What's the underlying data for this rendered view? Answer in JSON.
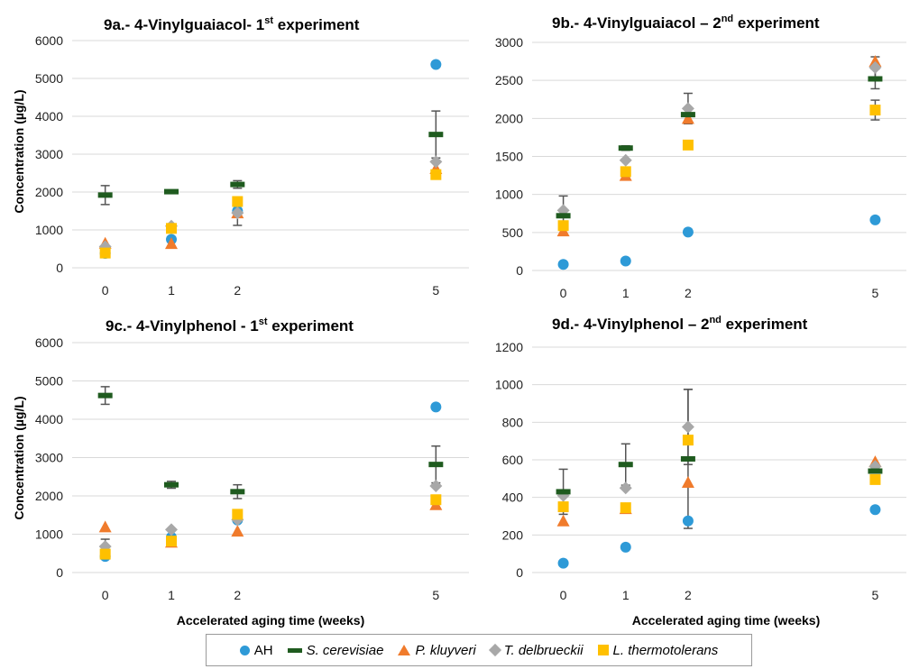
{
  "figure": {
    "y_axis_label": "Concentration (µg/L)",
    "x_axis_label": "Accelerated aging time (weeks)"
  },
  "legend": [
    {
      "key": "AH",
      "label": "AH",
      "italic": false,
      "marker": "circle",
      "color": "#2E9AD7"
    },
    {
      "key": "sc",
      "label": "S. cerevisiae",
      "italic": true,
      "marker": "dash",
      "color": "#1F5B1F"
    },
    {
      "key": "pk",
      "label": "P. kluyveri",
      "italic": true,
      "marker": "triangle",
      "color": "#F07B2C"
    },
    {
      "key": "td",
      "label": "T. delbrueckii",
      "italic": true,
      "marker": "diamond",
      "color": "#A8A8A8"
    },
    {
      "key": "lt",
      "label": "L. thermotolerans",
      "italic": true,
      "marker": "square",
      "color": "#FFC000"
    }
  ],
  "chart_data": [
    {
      "type": "scatter",
      "title_prefix": "9a.- 4-Vinylguaiacol- 1",
      "title_sup": "st",
      "title_suffix": " experiment",
      "x": [
        0,
        1,
        2,
        5
      ],
      "xticks": [
        0,
        1,
        2,
        5
      ],
      "xlim": [
        -0.5,
        5.5
      ],
      "ylim": [
        0,
        6000
      ],
      "yticks": [
        0,
        1000,
        2000,
        3000,
        4000,
        5000,
        6000
      ],
      "grid": true,
      "series": [
        {
          "key": "AH",
          "name": "AH",
          "values": [
            380,
            750,
            1500,
            5370
          ],
          "errors": [
            0,
            0,
            0,
            0
          ]
        },
        {
          "key": "sc",
          "name": "S. cerevisiae",
          "values": [
            1920,
            2010,
            2200,
            3520
          ],
          "errors": [
            250,
            40,
            100,
            620
          ]
        },
        {
          "key": "pk",
          "name": "P. kluyveri",
          "values": [
            650,
            640,
            1450,
            2620
          ],
          "errors": [
            0,
            0,
            0,
            0
          ]
        },
        {
          "key": "td",
          "name": "T. delbrueckii",
          "values": [
            560,
            1100,
            1450,
            2800
          ],
          "errors": [
            0,
            0,
            330,
            0
          ]
        },
        {
          "key": "lt",
          "name": "L. thermotolerans",
          "values": [
            390,
            1040,
            1750,
            2460
          ],
          "errors": [
            0,
            0,
            0,
            0
          ]
        }
      ]
    },
    {
      "type": "scatter",
      "title_prefix": "9b.- 4-Vinylguaiacol – 2",
      "title_sup": "nd",
      "title_suffix": " experiment",
      "x": [
        0,
        1,
        2,
        5
      ],
      "xticks": [
        0,
        1,
        2,
        5
      ],
      "xlim": [
        -0.5,
        5.5
      ],
      "ylim": [
        0,
        3000
      ],
      "yticks": [
        0,
        500,
        1000,
        1500,
        2000,
        2500,
        3000
      ],
      "grid": true,
      "series": [
        {
          "key": "AH",
          "name": "AH",
          "values": [
            80,
            125,
            505,
            665
          ],
          "errors": [
            0,
            0,
            0,
            0
          ]
        },
        {
          "key": "sc",
          "name": "S. cerevisiae",
          "values": [
            720,
            1610,
            2050,
            2520
          ],
          "errors": [
            0,
            30,
            0,
            130
          ]
        },
        {
          "key": "pk",
          "name": "P. kluyveri",
          "values": [
            520,
            1250,
            2000,
            2750
          ],
          "errors": [
            0,
            0,
            0,
            0
          ]
        },
        {
          "key": "td",
          "name": "T. delbrueckii",
          "values": [
            790,
            1450,
            2130,
            2670
          ],
          "errors": [
            190,
            0,
            200,
            140
          ]
        },
        {
          "key": "lt",
          "name": "L. thermotolerans",
          "values": [
            590,
            1300,
            1650,
            2110
          ],
          "errors": [
            0,
            0,
            0,
            130
          ]
        }
      ]
    },
    {
      "type": "scatter",
      "title_prefix": "9c.- 4-Vinylphenol - 1",
      "title_sup": "st",
      "title_suffix": " experiment",
      "x": [
        0,
        1,
        2,
        5
      ],
      "xticks": [
        0,
        1,
        2,
        5
      ],
      "xlim": [
        -0.5,
        5.5
      ],
      "ylim": [
        0,
        6000
      ],
      "yticks": [
        0,
        1000,
        2000,
        3000,
        4000,
        5000,
        6000
      ],
      "grid": true,
      "series": [
        {
          "key": "AH",
          "name": "AH",
          "values": [
            420,
            920,
            1370,
            4320
          ],
          "errors": [
            0,
            0,
            0,
            0
          ]
        },
        {
          "key": "sc",
          "name": "S. cerevisiae",
          "values": [
            4620,
            2290,
            2110,
            2820
          ],
          "errors": [
            230,
            90,
            180,
            480
          ]
        },
        {
          "key": "pk",
          "name": "P. kluyveri",
          "values": [
            1190,
            790,
            1080,
            1770
          ],
          "errors": [
            0,
            0,
            0,
            0
          ]
        },
        {
          "key": "td",
          "name": "T. delbrueckii",
          "values": [
            680,
            1120,
            1380,
            2260
          ],
          "errors": [
            190,
            0,
            0,
            0
          ]
        },
        {
          "key": "lt",
          "name": "L. thermotolerans",
          "values": [
            480,
            820,
            1520,
            1900
          ],
          "errors": [
            0,
            0,
            0,
            0
          ]
        }
      ]
    },
    {
      "type": "scatter",
      "title_prefix": "9d.- 4-Vinylphenol – 2",
      "title_sup": "nd",
      "title_suffix": " experiment",
      "x": [
        0,
        1,
        2,
        5
      ],
      "xticks": [
        0,
        1,
        2,
        5
      ],
      "xlim": [
        -0.5,
        5.5
      ],
      "ylim": [
        0,
        1200
      ],
      "yticks": [
        0,
        200,
        400,
        600,
        800,
        1000,
        1200
      ],
      "grid": true,
      "series": [
        {
          "key": "AH",
          "name": "AH",
          "values": [
            50,
            135,
            275,
            335
          ],
          "errors": [
            0,
            0,
            0,
            0
          ]
        },
        {
          "key": "sc",
          "name": "S. cerevisiae",
          "values": [
            430,
            575,
            605,
            540
          ],
          "errors": [
            120,
            110,
            370,
            0
          ]
        },
        {
          "key": "pk",
          "name": "P. kluyveri",
          "values": [
            275,
            340,
            480,
            590
          ],
          "errors": [
            0,
            0,
            0,
            0
          ]
        },
        {
          "key": "td",
          "name": "T. delbrueckii",
          "values": [
            410,
            450,
            775,
            565
          ],
          "errors": [
            0,
            0,
            200,
            0
          ]
        },
        {
          "key": "lt",
          "name": "L. thermotolerans",
          "values": [
            350,
            345,
            705,
            495
          ],
          "errors": [
            0,
            0,
            0,
            0
          ]
        }
      ]
    }
  ]
}
